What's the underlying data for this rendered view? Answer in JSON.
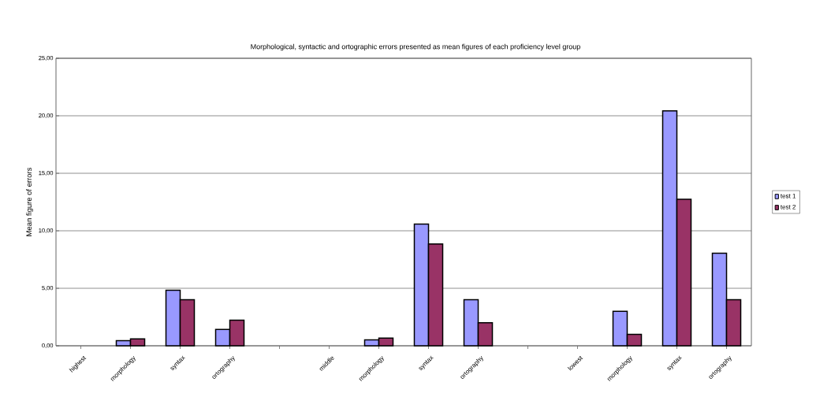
{
  "chart_data": {
    "type": "bar",
    "title": "Morphological, syntactic and ortographic errors presented as mean figures of each  proficiency level group",
    "ylabel": "Mean figure of errors",
    "categories": [
      "highest",
      "morphology",
      "syntax",
      "ortography",
      null,
      "middle",
      "morphology",
      "syntax",
      "ortography",
      null,
      "lowest",
      "morphology",
      "syntax",
      "ortography"
    ],
    "series": [
      {
        "name": "test 1",
        "color": "#9999ff",
        "values": [
          null,
          0.45,
          4.83,
          1.42,
          null,
          null,
          0.52,
          10.59,
          4.0,
          null,
          null,
          3.0,
          20.42,
          8.05
        ]
      },
      {
        "name": "test 2",
        "color": "#993366",
        "values": [
          null,
          0.6,
          4.0,
          2.22,
          null,
          null,
          0.66,
          8.85,
          2.0,
          null,
          null,
          1.0,
          12.74,
          4.0
        ]
      }
    ],
    "ylim": [
      0,
      25
    ],
    "yticks": [
      {
        "value": 0,
        "label": "0,00"
      },
      {
        "value": 5,
        "label": "5,00"
      },
      {
        "value": 10,
        "label": "10,00"
      },
      {
        "value": 15,
        "label": "15,00"
      },
      {
        "value": 20,
        "label": "20,00"
      },
      {
        "value": 25,
        "label": "25,00"
      }
    ],
    "grid": "y",
    "legend": "right"
  }
}
